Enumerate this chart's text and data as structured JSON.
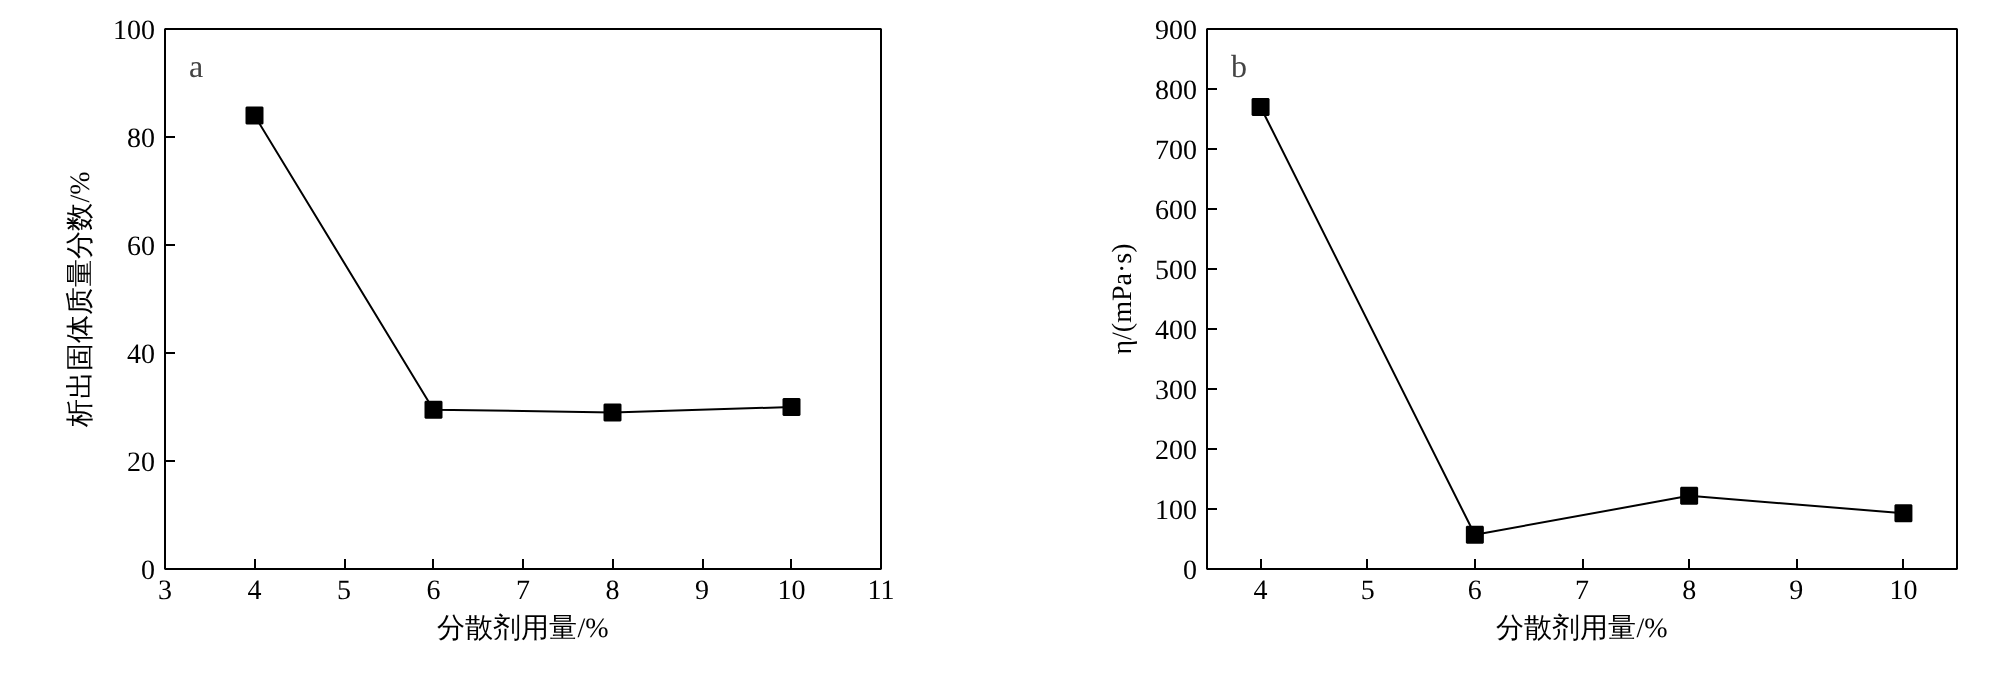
{
  "chart_data": [
    {
      "type": "line",
      "annotations": [
        "a"
      ],
      "xlabel": "分散剂用量/%",
      "ylabel": "析出固体质量分数/%",
      "x": [
        4,
        6,
        8,
        10
      ],
      "series": [
        {
          "color": "#000000",
          "values": [
            84,
            29.5,
            29,
            30
          ]
        }
      ],
      "marker": "square",
      "line_style": "solid",
      "xlim": [
        3,
        11
      ],
      "xticks": [
        3,
        4,
        5,
        6,
        7,
        8,
        9,
        10,
        11
      ],
      "ylim": [
        0,
        100
      ],
      "yticks": [
        0,
        20,
        40,
        60,
        80,
        100
      ]
    },
    {
      "type": "line",
      "annotations": [
        "b"
      ],
      "xlabel": "分散剂用量/%",
      "ylabel": "η/(mPa·s)",
      "x": [
        4,
        6,
        8,
        10
      ],
      "series": [
        {
          "color": "#000000",
          "values": [
            770,
            57,
            122,
            93
          ]
        }
      ],
      "marker": "square",
      "line_style": "solid",
      "xlim": [
        3.5,
        10.5
      ],
      "xticks": [
        4,
        5,
        6,
        7,
        8,
        9,
        10
      ],
      "ylim": [
        0,
        900
      ],
      "yticks": [
        0,
        100,
        200,
        300,
        400,
        500,
        600,
        700,
        800,
        900
      ]
    }
  ]
}
